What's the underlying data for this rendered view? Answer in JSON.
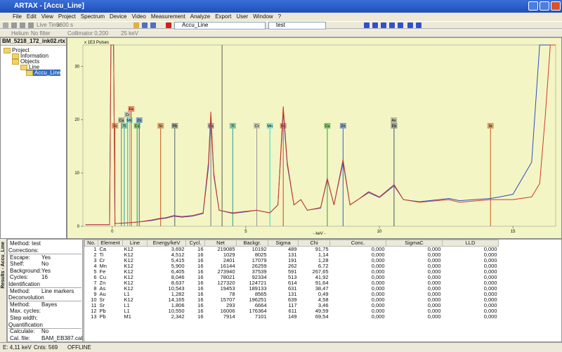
{
  "window": {
    "title": "ARTAX - [Accu_Line]"
  },
  "menu": [
    "File",
    "Edit",
    "View",
    "Project",
    "Spectrum",
    "Device",
    "Video",
    "Measurement",
    "Analyze",
    "Export",
    "User",
    "Window",
    "?"
  ],
  "toolbar": {
    "live_time": "Live Time:",
    "time": "3600 s",
    "spectrum": "Accu_Line",
    "method": "test",
    "atmosphere": "Helium",
    "filter": "No filter",
    "collimator": "Collimator 0,200",
    "voltage": "25 keV"
  },
  "tree": {
    "file": "BM_5218_172_ink02.rtx",
    "items": [
      "Project",
      "Information",
      "Objects",
      "Line",
      "Accu_Line"
    ]
  },
  "chart_data": {
    "type": "line",
    "title": "x 1E3 Pulses",
    "x_label": "- keV -",
    "xlim": [
      -1.1,
      16.6
    ],
    "ylim": [
      0,
      34
    ],
    "xticks": [
      0,
      5,
      10,
      15
    ],
    "yticks": [
      0,
      10,
      20,
      30
    ],
    "x": [
      -1.0,
      -0.1,
      -0.05,
      0.05,
      0.1,
      0.5,
      1.0,
      1.5,
      1.8,
      2.0,
      2.3,
      2.6,
      3.0,
      3.4,
      3.6,
      3.69,
      3.8,
      4.0,
      4.5,
      5.0,
      5.4,
      5.9,
      6.2,
      6.4,
      6.55,
      6.8,
      7.06,
      7.3,
      7.8,
      8.05,
      8.3,
      8.64,
      8.9,
      9.2,
      9.6,
      10.0,
      10.55,
      10.9,
      11.5,
      12.6,
      13.0,
      14.16,
      14.5,
      15.0,
      15.7,
      16.0,
      16.2,
      16.4,
      16.6
    ],
    "series": [
      {
        "name": "Accu_Line",
        "color": "#d03a2a",
        "values": [
          0.3,
          0.3,
          34,
          34,
          0.5,
          0.6,
          0.8,
          1.2,
          1.5,
          1.6,
          2.0,
          1.8,
          2.0,
          2.5,
          12,
          21.5,
          10,
          3,
          2.5,
          2.8,
          3,
          2.5,
          4,
          22.5,
          12,
          4,
          5,
          3,
          3.5,
          9,
          4,
          12.5,
          4,
          5,
          6.5,
          5.5,
          7.8,
          5,
          4.5,
          5,
          4.5,
          5,
          5,
          5,
          5.5,
          8,
          20,
          34,
          34
        ]
      },
      {
        "name": "test",
        "color": "#3048c8",
        "values": [
          0.3,
          0.3,
          34,
          34,
          0.5,
          0.6,
          0.8,
          1.1,
          1.4,
          1.5,
          1.9,
          1.7,
          1.9,
          2.4,
          11,
          20.5,
          9.5,
          3,
          2.4,
          2.7,
          3,
          2.5,
          4,
          21.5,
          11.5,
          4,
          5,
          3,
          3.4,
          8.8,
          4,
          12,
          4,
          5,
          6.3,
          5.4,
          7.6,
          5,
          4.6,
          5.2,
          4.8,
          5.2,
          5.5,
          6,
          12,
          34,
          34,
          34,
          34
        ]
      }
    ],
    "markers": [
      {
        "label": "Sr",
        "x": 0.1,
        "color": "#c85a1e"
      },
      {
        "label": "Ca",
        "x": 0.34,
        "color": "#7a7a7a"
      },
      {
        "label": "Ti",
        "x": 0.45,
        "color": "#2a9d8f"
      },
      {
        "label": "Cr",
        "x": 0.57,
        "color": "#9a9a9a"
      },
      {
        "label": "Mn",
        "x": 0.64,
        "color": "#35d0d0"
      },
      {
        "label": "Fe",
        "x": 0.71,
        "color": "#d93b20"
      },
      {
        "label": "Cu",
        "x": 0.93,
        "color": "#2ca02c"
      },
      {
        "label": "Zn",
        "x": 1.01,
        "color": "#3060c0"
      },
      {
        "label": "Sr",
        "x": 1.81,
        "color": "#c85a1e"
      },
      {
        "label": "Pb",
        "x": 2.34,
        "color": "#506070"
      },
      {
        "label": "Ca",
        "x": 3.69,
        "color": "#7a7a7a"
      },
      {
        "label": "Ti",
        "x": 4.51,
        "color": "#2a9d8f"
      },
      {
        "label": "Cr",
        "x": 5.41,
        "color": "#9a9a9a"
      },
      {
        "label": "Mn",
        "x": 5.9,
        "color": "#35d0d0"
      },
      {
        "label": "Fe",
        "x": 6.4,
        "color": "#d93b20"
      },
      {
        "label": "Cu",
        "x": 8.05,
        "color": "#2ca02c"
      },
      {
        "label": "Zn",
        "x": 8.64,
        "color": "#3060c0"
      },
      {
        "label": "Pb",
        "x": 10.55,
        "color": "#506070"
      },
      {
        "label": "As",
        "x": 10.54,
        "color": "#8a8a8a"
      },
      {
        "label": "Sr",
        "x": 14.16,
        "color": "#c85a1e"
      }
    ],
    "cursor": 4.11,
    "background": "#f3f6c4"
  },
  "side_tab": "Results - Accu_Line",
  "settings": {
    "method": "Method: test",
    "rows": [
      {
        "label": "Corrections:"
      },
      {
        "label": "Escape:",
        "value": "Yes"
      },
      {
        "label": "Shelf:",
        "value": "No"
      },
      {
        "label": "Background:",
        "value": "Yes"
      },
      {
        "label": "Cycles:",
        "value": "16"
      },
      {
        "label": "Identification"
      },
      {
        "label": "Method:",
        "value": "Line markers"
      },
      {
        "label": "Deconvolution"
      },
      {
        "label": "Method:",
        "value": "Bayes"
      },
      {
        "label": "Max. cycles:"
      },
      {
        "label": "Step width:"
      },
      {
        "label": "Quantification"
      },
      {
        "label": "Calculate:",
        "value": "No"
      },
      {
        "label": "Cal. file:",
        "value": "BAM_EB387.cal"
      }
    ]
  },
  "table": {
    "columns": [
      "No.",
      "Element",
      "Line",
      "Energy/keV",
      "Cycl.",
      "Net",
      "Backgr.",
      "Sigma",
      "Chi",
      "Conc.",
      "SigmaC",
      "LLD"
    ],
    "rows": [
      [
        "1",
        "Ca",
        "K12",
        "3,692",
        "16",
        "219085",
        "10192",
        "489",
        "91,75",
        "0,000",
        "0,000",
        "0,000"
      ],
      [
        "2",
        "Ti",
        "K12",
        "4,512",
        "16",
        "1029",
        "8025",
        "131",
        "1,14",
        "0,000",
        "0,000",
        "0,000"
      ],
      [
        "3",
        "Cr",
        "K12",
        "5,415",
        "16",
        "2401",
        "17079",
        "191",
        "1,28",
        "0,000",
        "0,000",
        "0,000"
      ],
      [
        "4",
        "Mn",
        "K12",
        "5,900",
        "16",
        "16144",
        "26259",
        "262",
        "6,72",
        "0,000",
        "0,000",
        "0,000"
      ],
      [
        "5",
        "Fe",
        "K12",
        "6,405",
        "16",
        "273940",
        "37539",
        "591",
        "267,65",
        "0,000",
        "0,000",
        "0,000"
      ],
      [
        "6",
        "Cu",
        "K12",
        "8,046",
        "16",
        "78021",
        "92334",
        "513",
        "41,92",
        "0,000",
        "0,000",
        "0,000"
      ],
      [
        "7",
        "Zn",
        "K12",
        "8,637",
        "16",
        "127320",
        "124721",
        "614",
        "91,64",
        "0,000",
        "0,000",
        "0,000"
      ],
      [
        "8",
        "As",
        "K12",
        "10,543",
        "16",
        "19453",
        "189133",
        "631",
        "38,47",
        "0,000",
        "0,000",
        "0,000"
      ],
      [
        "9",
        "Au",
        "L1",
        "1,282",
        "16",
        "78",
        "8565",
        "131",
        "0,49",
        "0,000",
        "0,000",
        "0,000"
      ],
      [
        "10",
        "Sr",
        "K12",
        "14,165",
        "16",
        "15707",
        "196251",
        "639",
        "4,58",
        "0,000",
        "0,000",
        "0,000"
      ],
      [
        "11",
        "Sr",
        "L1",
        "1,806",
        "16",
        "293",
        "6664",
        "117",
        "3,46",
        "0,000",
        "0,000",
        "0,000"
      ],
      [
        "12",
        "Pb",
        "L1",
        "10,550",
        "16",
        "16006",
        "176364",
        "611",
        "49,59",
        "0,000",
        "0,000",
        "0,000"
      ],
      [
        "13",
        "Pb",
        "M1",
        "2,342",
        "16",
        "7914",
        "7101",
        "149",
        "69,54",
        "0,000",
        "0,000",
        "0,000"
      ]
    ]
  },
  "status": [
    "E: 4,11 keV",
    "Cnts: 569",
    "OFFLINE"
  ]
}
